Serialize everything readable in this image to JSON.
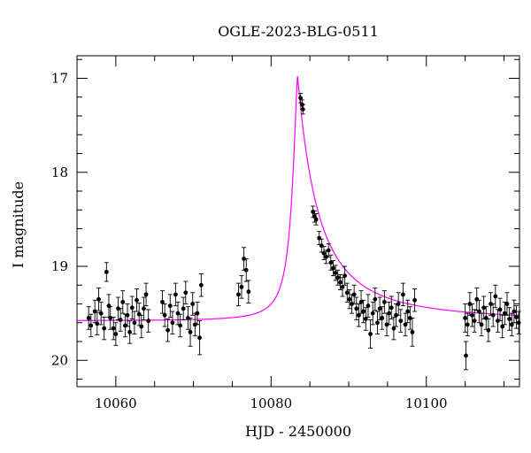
{
  "chart_data": {
    "type": "scatter",
    "title": "OGLE-2023-BLG-0511",
    "xlabel": "HJD - 2450000",
    "ylabel": "I magnitude",
    "xlim": [
      10055,
      10112
    ],
    "ylim": [
      20.28,
      16.76
    ],
    "y_inverted": true,
    "x_ticks": [
      10060,
      10080,
      10100
    ],
    "y_ticks": [
      17,
      18,
      19,
      20
    ],
    "grid": false,
    "point_color": "#000000",
    "model_color": "#ff00ff",
    "series": [
      {
        "kind": "observations",
        "points": [
          [
            10056.5,
            19.55,
            0.12
          ],
          [
            10056.8,
            19.63,
            0.12
          ],
          [
            10057.3,
            19.48,
            0.12
          ],
          [
            10057.6,
            19.61,
            0.12
          ],
          [
            10057.8,
            19.35,
            0.12
          ],
          [
            10058.1,
            19.5,
            0.12
          ],
          [
            10058.5,
            19.66,
            0.12
          ],
          [
            10058.8,
            19.06,
            0.1
          ],
          [
            10059.1,
            19.42,
            0.12
          ],
          [
            10059.3,
            19.55,
            0.12
          ],
          [
            10059.7,
            19.66,
            0.12
          ],
          [
            10060.0,
            19.72,
            0.12
          ],
          [
            10060.3,
            19.45,
            0.12
          ],
          [
            10060.6,
            19.57,
            0.12
          ],
          [
            10060.9,
            19.38,
            0.12
          ],
          [
            10061.2,
            19.63,
            0.12
          ],
          [
            10061.5,
            19.52,
            0.12
          ],
          [
            10061.8,
            19.7,
            0.12
          ],
          [
            10062.1,
            19.44,
            0.12
          ],
          [
            10062.4,
            19.6,
            0.12
          ],
          [
            10062.7,
            19.36,
            0.12
          ],
          [
            10063.0,
            19.51,
            0.12
          ],
          [
            10063.3,
            19.64,
            0.12
          ],
          [
            10063.6,
            19.45,
            0.12
          ],
          [
            10063.9,
            19.3,
            0.12
          ],
          [
            10064.2,
            19.58,
            0.12
          ],
          [
            10066.0,
            19.38,
            0.12
          ],
          [
            10066.3,
            19.52,
            0.12
          ],
          [
            10066.7,
            19.68,
            0.12
          ],
          [
            10067.0,
            19.42,
            0.12
          ],
          [
            10067.3,
            19.6,
            0.12
          ],
          [
            10067.7,
            19.3,
            0.12
          ],
          [
            10068.0,
            19.5,
            0.12
          ],
          [
            10068.3,
            19.63,
            0.12
          ],
          [
            10068.7,
            19.45,
            0.12
          ],
          [
            10069.0,
            19.28,
            0.12
          ],
          [
            10069.3,
            19.55,
            0.12
          ],
          [
            10069.6,
            19.7,
            0.15
          ],
          [
            10069.9,
            19.4,
            0.12
          ],
          [
            10070.2,
            19.62,
            0.12
          ],
          [
            10070.5,
            19.5,
            0.12
          ],
          [
            10070.8,
            19.76,
            0.18
          ],
          [
            10071.0,
            19.2,
            0.12
          ],
          [
            10075.8,
            19.3,
            0.12
          ],
          [
            10076.2,
            19.22,
            0.12
          ],
          [
            10076.5,
            18.92,
            0.12
          ],
          [
            10076.8,
            19.04,
            0.12
          ],
          [
            10077.1,
            19.27,
            0.12
          ],
          [
            10083.8,
            17.21,
            0.05
          ],
          [
            10084.0,
            17.28,
            0.05
          ],
          [
            10084.1,
            17.33,
            0.05
          ],
          [
            10085.4,
            18.42,
            0.06
          ],
          [
            10085.6,
            18.47,
            0.06
          ],
          [
            10085.8,
            18.5,
            0.06
          ],
          [
            10086.2,
            18.7,
            0.07
          ],
          [
            10086.5,
            18.78,
            0.07
          ],
          [
            10086.8,
            18.86,
            0.07
          ],
          [
            10087.1,
            18.9,
            0.07
          ],
          [
            10087.4,
            18.83,
            0.07
          ],
          [
            10087.7,
            18.96,
            0.08
          ],
          [
            10088.0,
            19.02,
            0.08
          ],
          [
            10088.3,
            19.07,
            0.08
          ],
          [
            10088.6,
            19.12,
            0.08
          ],
          [
            10088.9,
            19.17,
            0.08
          ],
          [
            10089.2,
            19.22,
            0.1
          ],
          [
            10089.5,
            19.1,
            0.1
          ],
          [
            10089.8,
            19.28,
            0.1
          ],
          [
            10090.1,
            19.35,
            0.1
          ],
          [
            10090.4,
            19.4,
            0.1
          ],
          [
            10090.7,
            19.3,
            0.1
          ],
          [
            10091.0,
            19.45,
            0.12
          ],
          [
            10091.3,
            19.52,
            0.12
          ],
          [
            10091.6,
            19.38,
            0.12
          ],
          [
            10091.9,
            19.48,
            0.12
          ],
          [
            10092.2,
            19.56,
            0.12
          ],
          [
            10092.5,
            19.42,
            0.12
          ],
          [
            10092.8,
            19.72,
            0.15
          ],
          [
            10093.1,
            19.5,
            0.12
          ],
          [
            10093.4,
            19.35,
            0.12
          ],
          [
            10093.7,
            19.6,
            0.12
          ],
          [
            10094.0,
            19.45,
            0.12
          ],
          [
            10094.3,
            19.55,
            0.12
          ],
          [
            10094.6,
            19.38,
            0.12
          ],
          [
            10094.9,
            19.62,
            0.12
          ],
          [
            10095.2,
            19.5,
            0.12
          ],
          [
            10095.5,
            19.44,
            0.12
          ],
          [
            10095.8,
            19.66,
            0.12
          ],
          [
            10096.1,
            19.52,
            0.12
          ],
          [
            10096.4,
            19.4,
            0.12
          ],
          [
            10096.7,
            19.58,
            0.12
          ],
          [
            10097.0,
            19.3,
            0.12
          ],
          [
            10097.3,
            19.62,
            0.12
          ],
          [
            10097.6,
            19.48,
            0.12
          ],
          [
            10097.9,
            19.55,
            0.12
          ],
          [
            10098.2,
            19.7,
            0.15
          ],
          [
            10098.5,
            19.36,
            0.12
          ],
          [
            10105.0,
            19.55,
            0.15
          ],
          [
            10105.1,
            19.95,
            0.15
          ],
          [
            10105.3,
            19.62,
            0.12
          ],
          [
            10105.6,
            19.4,
            0.12
          ],
          [
            10105.9,
            19.52,
            0.12
          ],
          [
            10106.2,
            19.58,
            0.12
          ],
          [
            10106.5,
            19.35,
            0.12
          ],
          [
            10106.8,
            19.48,
            0.12
          ],
          [
            10107.1,
            19.62,
            0.12
          ],
          [
            10107.4,
            19.44,
            0.12
          ],
          [
            10107.7,
            19.55,
            0.12
          ],
          [
            10108.0,
            19.68,
            0.12
          ],
          [
            10108.3,
            19.4,
            0.12
          ],
          [
            10108.6,
            19.52,
            0.12
          ],
          [
            10108.9,
            19.32,
            0.12
          ],
          [
            10109.2,
            19.58,
            0.12
          ],
          [
            10109.5,
            19.46,
            0.12
          ],
          [
            10109.8,
            19.64,
            0.12
          ],
          [
            10110.1,
            19.5,
            0.12
          ],
          [
            10110.4,
            19.4,
            0.12
          ],
          [
            10110.7,
            19.56,
            0.12
          ],
          [
            10111.0,
            19.62,
            0.12
          ],
          [
            10111.3,
            19.48,
            0.12
          ],
          [
            10111.6,
            19.54,
            0.12
          ],
          [
            10111.9,
            19.6,
            0.12
          ]
        ]
      },
      {
        "kind": "model",
        "baseline": 19.58,
        "peak_time": 10083.4,
        "peak_mag": 16.96,
        "wing_inner": 1.0,
        "wing_outer": 9.0
      }
    ]
  }
}
